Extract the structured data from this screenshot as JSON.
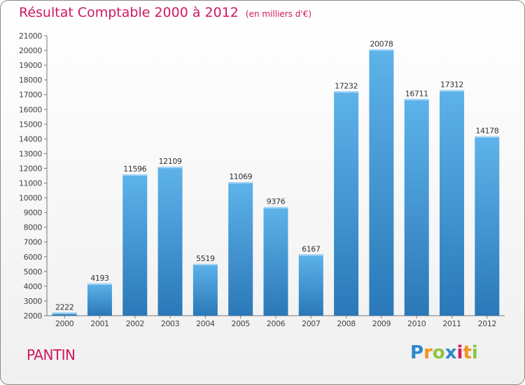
{
  "colors": {
    "title": "#d01860",
    "bar_top": "#5eb3ea",
    "bar_bottom": "#2a78b8",
    "axis": "#777777"
  },
  "logo": {
    "letters": [
      "P",
      "r",
      "o",
      "x",
      "i",
      "t",
      "i"
    ],
    "colors": [
      "#2d87c9",
      "#f0941c",
      "#8cc63f",
      "#2d87c9",
      "#d71b5b",
      "#f0941c",
      "#8cc63f"
    ]
  },
  "chart_data": {
    "type": "bar",
    "title": "Résultat Comptable 2000 à 2012",
    "subtitle": "(en milliers d'€)",
    "place": "PANTIN",
    "categories": [
      "2000",
      "2001",
      "2002",
      "2003",
      "2004",
      "2005",
      "2006",
      "2007",
      "2008",
      "2009",
      "2010",
      "2011",
      "2012"
    ],
    "values": [
      2222,
      4193,
      11596,
      12109,
      5519,
      11069,
      9376,
      6167,
      17232,
      20078,
      16711,
      17312,
      14178
    ],
    "value_labels": [
      "2222",
      "4193",
      "11596",
      "12109",
      "5519",
      "11069",
      "9376",
      "6167",
      "17232",
      "20078",
      "16711",
      "17312",
      "14178"
    ],
    "ylim": [
      2000,
      21000
    ],
    "y_ticks": [
      "2000",
      "3000",
      "4000",
      "5000",
      "6000",
      "7000",
      "8000",
      "9000",
      "10000",
      "11000",
      "12000",
      "13000",
      "14000",
      "15000",
      "16000",
      "17000",
      "18000",
      "19000",
      "20000",
      "21000"
    ],
    "grid": false,
    "xlabel": "",
    "ylabel": ""
  }
}
